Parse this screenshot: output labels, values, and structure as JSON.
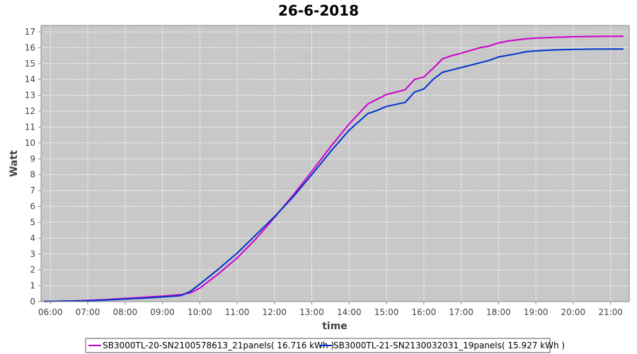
{
  "colors": {
    "plot_background": "#c8c8c8",
    "grid": "#ffffff",
    "series1": "#cc00cc",
    "series2": "#0033cc"
  },
  "chart_data": {
    "type": "line",
    "title": "26-6-2018",
    "xlabel": "time",
    "ylabel": "Watt",
    "x_ticks": [
      "06:00",
      "07:00",
      "08:00",
      "09:00",
      "10:00",
      "11:00",
      "12:00",
      "13:00",
      "14:00",
      "15:00",
      "16:00",
      "17:00",
      "18:00",
      "19:00",
      "20:00",
      "21:00"
    ],
    "y_ticks": [
      "0",
      "1",
      "2",
      "3",
      "4",
      "5",
      "6",
      "7",
      "8",
      "9",
      "10",
      "11",
      "12",
      "13",
      "14",
      "15",
      "16",
      "17"
    ],
    "xlim": [
      "05:45",
      "21:30"
    ],
    "ylim": [
      0,
      17.4
    ],
    "grid": true,
    "legend_position": "bottom",
    "series": [
      {
        "name": "SB3000TL-20-SN2100578613_21panels( 16.716 kWh )",
        "x": [
          "05:50",
          "06:30",
          "07:00",
          "07:30",
          "08:00",
          "08:30",
          "09:00",
          "09:30",
          "09:45",
          "10:00",
          "10:30",
          "11:00",
          "11:30",
          "12:00",
          "12:30",
          "13:00",
          "13:30",
          "14:00",
          "14:30",
          "14:45",
          "15:00",
          "15:30",
          "15:45",
          "16:00",
          "16:15",
          "16:30",
          "16:45",
          "17:00",
          "17:30",
          "17:45",
          "18:00",
          "18:15",
          "18:30",
          "18:45",
          "19:00",
          "19:30",
          "20:00",
          "20:30",
          "21:00",
          "21:20"
        ],
        "values": [
          0.01,
          0.04,
          0.08,
          0.13,
          0.2,
          0.27,
          0.35,
          0.44,
          0.55,
          0.85,
          1.75,
          2.75,
          3.95,
          5.3,
          6.7,
          8.2,
          9.75,
          11.2,
          12.45,
          12.75,
          13.05,
          13.35,
          14.0,
          14.15,
          14.7,
          15.3,
          15.5,
          15.65,
          16.0,
          16.1,
          16.3,
          16.42,
          16.5,
          16.56,
          16.6,
          16.65,
          16.69,
          16.71,
          16.72,
          16.72
        ]
      },
      {
        "name": "SB3000TL-21-SN2130032031_19panels( 15.927 kWh )",
        "x": [
          "05:50",
          "06:30",
          "07:00",
          "07:30",
          "08:00",
          "08:30",
          "09:00",
          "09:30",
          "09:45",
          "10:00",
          "10:30",
          "11:00",
          "11:30",
          "12:00",
          "12:30",
          "13:00",
          "13:30",
          "14:00",
          "14:30",
          "14:45",
          "15:00",
          "15:30",
          "15:45",
          "16:00",
          "16:15",
          "16:30",
          "16:45",
          "17:00",
          "17:30",
          "17:45",
          "18:00",
          "18:15",
          "18:30",
          "18:45",
          "19:00",
          "19:30",
          "20:00",
          "20:30",
          "21:00",
          "21:20"
        ],
        "values": [
          0.01,
          0.03,
          0.06,
          0.1,
          0.16,
          0.22,
          0.29,
          0.38,
          0.65,
          1.1,
          2.05,
          3.05,
          4.2,
          5.35,
          6.6,
          8.0,
          9.45,
          10.8,
          11.85,
          12.05,
          12.3,
          12.55,
          13.2,
          13.4,
          14.0,
          14.45,
          14.6,
          14.75,
          15.05,
          15.2,
          15.42,
          15.52,
          15.63,
          15.75,
          15.8,
          15.86,
          15.89,
          15.91,
          15.92,
          15.92
        ]
      }
    ]
  }
}
